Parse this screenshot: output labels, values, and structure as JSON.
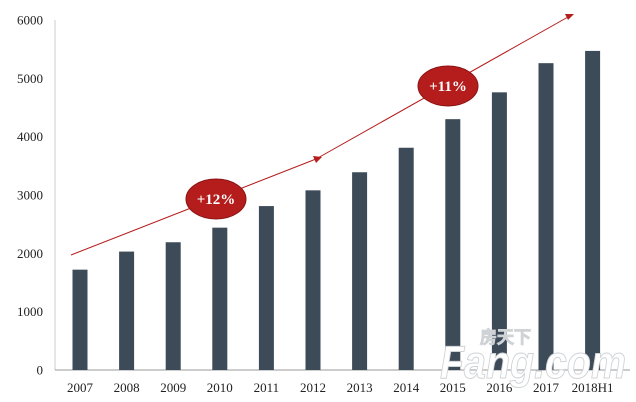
{
  "chart_data": {
    "type": "bar",
    "categories": [
      "2007",
      "2008",
      "2009",
      "2010",
      "2011",
      "2012",
      "2013",
      "2014",
      "2015",
      "2016",
      "2017",
      "2018H1"
    ],
    "values": [
      1720,
      2030,
      2190,
      2440,
      2810,
      3080,
      3390,
      3810,
      4300,
      4760,
      5260,
      5470
    ],
    "ylim": [
      0,
      6000
    ],
    "yticks": [
      0,
      1000,
      2000,
      3000,
      4000,
      5000,
      6000
    ],
    "grid": false,
    "bar_color": "#3d4a57",
    "annotations": [
      {
        "label": "+12%",
        "color": "#b51c1c"
      },
      {
        "label": "+11%",
        "color": "#b51c1c"
      }
    ],
    "trend_arrow_color": "#b51c1c"
  },
  "watermark": {
    "main": "Fang.com",
    "sub": "房天下"
  }
}
